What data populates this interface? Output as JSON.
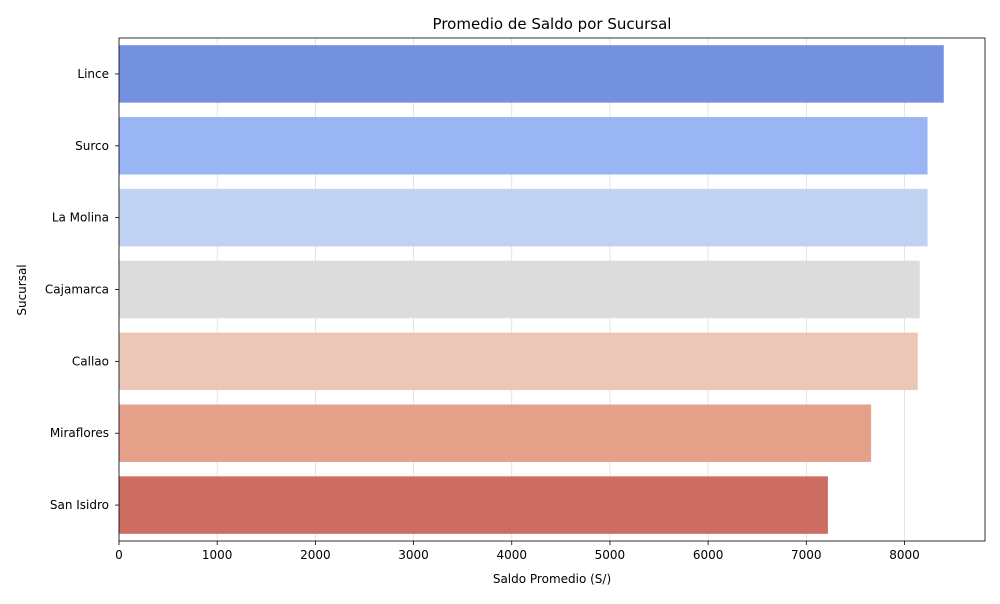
{
  "chart_data": {
    "type": "bar",
    "orientation": "horizontal",
    "title": "Promedio de Saldo por Sucursal",
    "xlabel": "Saldo Promedio (S/)",
    "ylabel": "Sucursal",
    "categories": [
      "Lince",
      "Surco",
      "La Molina",
      "Cajamarca",
      "Callao",
      "Miraflores",
      "San Isidro"
    ],
    "values": [
      8400,
      8235,
      8235,
      8155,
      8135,
      7660,
      7220
    ],
    "colors": [
      "#7491df",
      "#9ab5f3",
      "#c0d2f1",
      "#dcdcdc",
      "#ecc7b7",
      "#e5a089",
      "#cd6c61"
    ],
    "xlim": [
      0,
      8820
    ],
    "xticks": [
      0,
      1000,
      2000,
      3000,
      4000,
      5000,
      6000,
      7000,
      8000
    ],
    "xtick_labels": [
      "0",
      "1000",
      "2000",
      "3000",
      "4000",
      "5000",
      "6000",
      "7000",
      "8000"
    ],
    "grid": "x-axis, vertical lines"
  }
}
